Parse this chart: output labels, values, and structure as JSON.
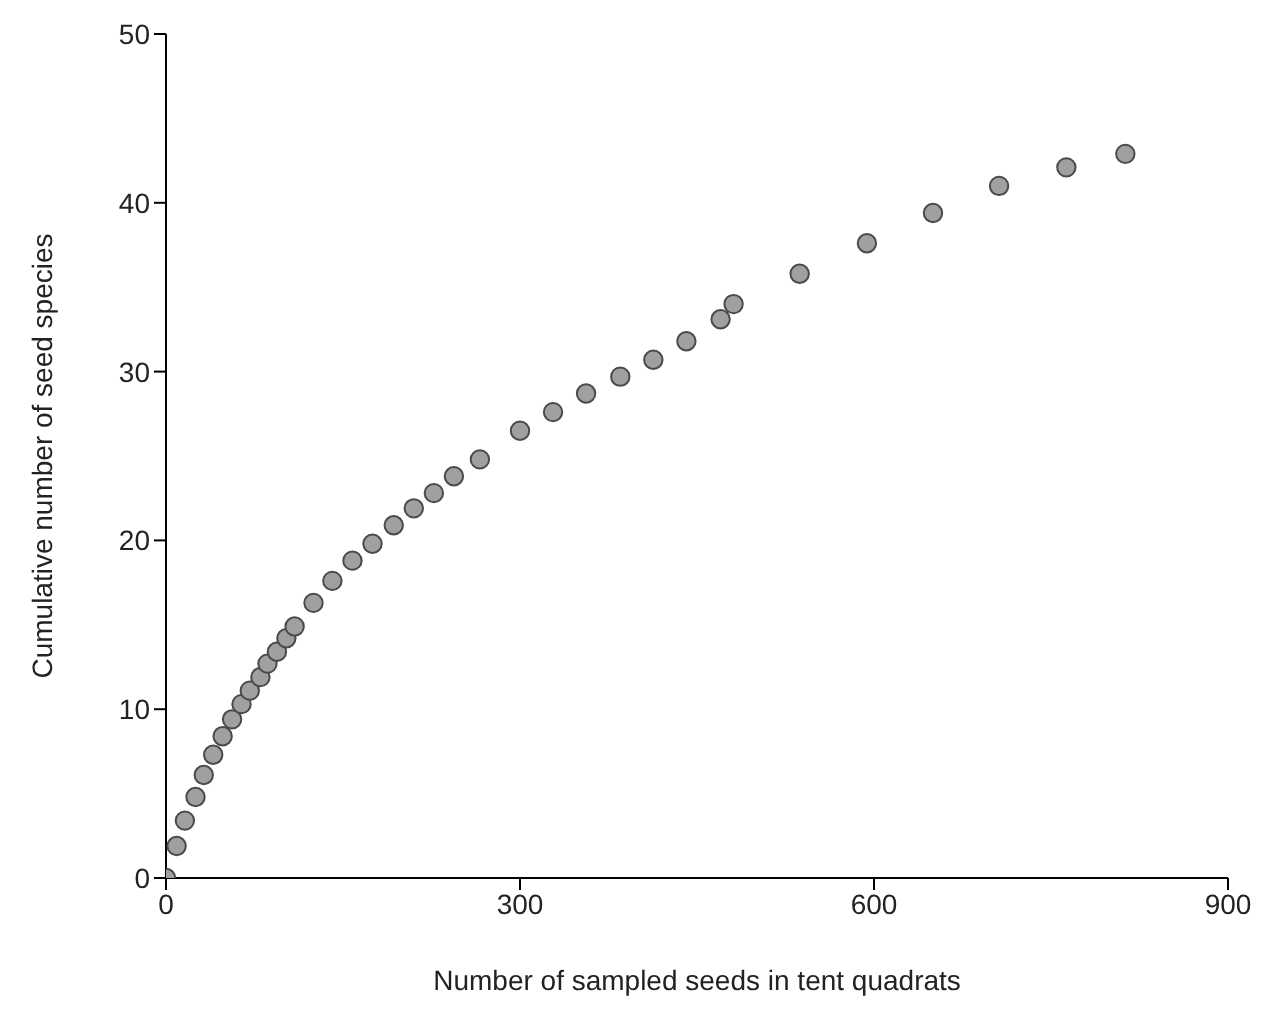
{
  "chart_data": {
    "type": "scatter",
    "xlabel": "Number of sampled seeds in tent quadrats",
    "ylabel": "Cumulative number of seed species",
    "x": [
      0,
      9,
      16,
      25,
      32,
      40,
      48,
      56,
      64,
      71,
      80,
      86,
      94,
      102,
      109,
      125,
      141,
      158,
      175,
      193,
      210,
      227,
      244,
      266,
      300,
      328,
      356,
      385,
      413,
      441,
      470,
      481,
      537,
      594,
      650,
      706,
      763,
      813
    ],
    "series": [
      {
        "color": "#a0a0a0",
        "values": [
          0,
          1.9,
          3.4,
          4.8,
          6.1,
          7.3,
          8.4,
          9.4,
          10.3,
          11.1,
          11.9,
          12.7,
          13.4,
          14.2,
          14.9,
          16.3,
          17.6,
          18.8,
          19.8,
          20.9,
          21.9,
          22.8,
          23.8,
          24.8,
          26.5,
          27.6,
          28.7,
          29.7,
          30.7,
          31.8,
          33.1,
          34.0,
          35.8,
          37.6,
          39.4,
          41.0,
          42.1,
          42.9
        ]
      }
    ],
    "xlim": [
      0,
      900
    ],
    "xticks": [
      0,
      300,
      600,
      900
    ],
    "ylim": [
      0,
      50
    ],
    "yticks": [
      0,
      10,
      20,
      30,
      40,
      50
    ],
    "grid": false,
    "legend": false,
    "marker": "circle"
  }
}
